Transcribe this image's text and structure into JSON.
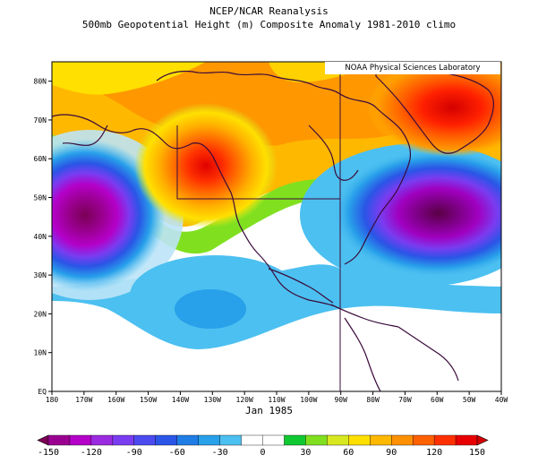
{
  "header": {
    "title": "NCEP/NCAR Reanalysis",
    "subtitle": "500mb Geopotential Height (m) Composite Anomaly 1981-2010 climo"
  },
  "credit": "NOAA Physical Sciences Laboratory",
  "date_label": "Jan 1985",
  "map": {
    "lat_labels": [
      "80N",
      "70N",
      "60N",
      "50N",
      "40N",
      "30N",
      "20N",
      "10N",
      "EQ"
    ],
    "lon_labels": [
      "180",
      "170W",
      "160W",
      "150W",
      "140W",
      "130W",
      "120W",
      "110W",
      "100W",
      "90W",
      "80W",
      "70W",
      "60W",
      "50W",
      "40W"
    ],
    "features": [
      {
        "name": "negative-anomaly-low-north-pacific",
        "value": -150
      },
      {
        "name": "negative-anomaly-low-northeast-america",
        "value": -150
      },
      {
        "name": "positive-anomaly-high-british-columbia",
        "value": 150
      },
      {
        "name": "positive-anomaly-high-greenland",
        "value": 150
      }
    ]
  },
  "colorbar": {
    "tick_labels": [
      "-150",
      "-120",
      "-90",
      "-60",
      "-30",
      "0",
      "30",
      "60",
      "90",
      "120",
      "150"
    ],
    "colors": [
      "#7a0055",
      "#9a0090",
      "#b400c8",
      "#9a2be0",
      "#7a3cf0",
      "#4b4bf0",
      "#2a55e6",
      "#1f7de6",
      "#28a0ea",
      "#4cc0f0",
      "#ffffff",
      "#ffffff",
      "#10c830",
      "#80e020",
      "#d8e820",
      "#ffe000",
      "#ffb800",
      "#ff9000",
      "#ff6000",
      "#ff3000",
      "#e80000",
      "#d40000"
    ]
  }
}
